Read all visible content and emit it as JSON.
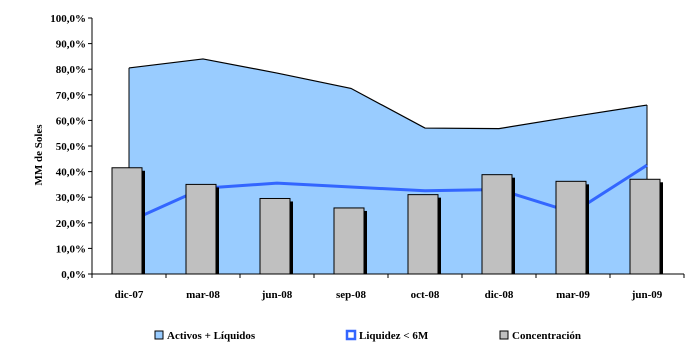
{
  "chart_data": {
    "type": "bar",
    "title": "",
    "xlabel": "",
    "ylabel": "MM de Soles",
    "categories": [
      "dic-07",
      "mar-08",
      "jun-08",
      "sep-08",
      "oct-08",
      "dic-08",
      "mar-09",
      "jun-09"
    ],
    "ylim": [
      0,
      100
    ],
    "yticks": [
      "0,0%",
      "10,0%",
      "20,0%",
      "30,0%",
      "40,0%",
      "50,0%",
      "60,0%",
      "70,0%",
      "80,0%",
      "90,0%",
      "100,0%"
    ],
    "grid": false,
    "legend_position": "bottom",
    "series": [
      {
        "name": "Activos + Líquidos",
        "kind": "area",
        "color": "#99ccff",
        "values": [
          80.5,
          84.0,
          78.5,
          72.5,
          57.0,
          56.8,
          61.5,
          66.0
        ]
      },
      {
        "name": "Liquidez < 6M",
        "kind": "line",
        "color": "#3366ff",
        "values": [
          20.5,
          33.5,
          35.5,
          34.0,
          32.5,
          33.0,
          24.0,
          42.5
        ]
      },
      {
        "name": "Concentración",
        "kind": "bar",
        "color": "#c0c0c0",
        "values": [
          41.5,
          35.0,
          29.5,
          25.8,
          31.0,
          38.8,
          36.2,
          37.0
        ]
      }
    ]
  }
}
